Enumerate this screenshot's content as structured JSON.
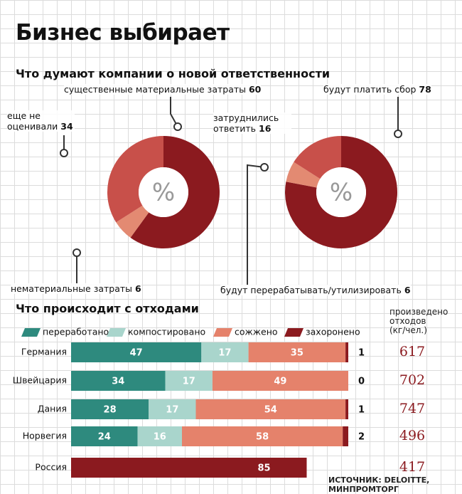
{
  "title": "Бизнес выбирает",
  "source": "ИСТОЧНИК: DELOITTE, МИНПРОМТОРГ",
  "chart_data": [
    {
      "type": "donut",
      "title": "Что думают компании о новой ответственности",
      "center_label": "%",
      "categories": [
        "существенные материальные затраты",
        "нематериальные затраты",
        "еще не оценивали"
      ],
      "values": [
        60,
        6,
        34
      ],
      "colors": [
        "#8b1a1f",
        "#e38a72",
        "#c8504a"
      ]
    },
    {
      "type": "donut",
      "center_label": "%",
      "categories": [
        "будут платить сбор",
        "будут перерабатывать/утилизировать",
        "затруднились ответить"
      ],
      "values": [
        78,
        6,
        16
      ],
      "colors": [
        "#8b1a1f",
        "#e38a72",
        "#c8504a"
      ]
    },
    {
      "type": "bar",
      "orientation": "horizontal",
      "stacked": true,
      "title": "Что происходит с отходами",
      "categories": [
        "Германия",
        "Швейцария",
        "Дания",
        "Норвегия",
        "Россия"
      ],
      "series": [
        {
          "name": "переработано",
          "color": "#2e8a7e",
          "values": [
            47,
            34,
            28,
            24,
            null
          ]
        },
        {
          "name": "компостировано",
          "color": "#a9d5cc",
          "values": [
            17,
            17,
            17,
            16,
            null
          ]
        },
        {
          "name": "сожжено",
          "color": "#e5826b",
          "values": [
            35,
            49,
            54,
            58,
            null
          ]
        },
        {
          "name": "захоронено",
          "color": "#8b1a1f",
          "values": [
            1,
            0,
            1,
            2,
            85
          ]
        }
      ],
      "xlim": [
        0,
        100
      ],
      "side_column": {
        "title_lines": [
          "произведено",
          "отходов",
          "(кг/чел.)"
        ],
        "values": [
          617,
          702,
          747,
          496,
          417
        ]
      }
    }
  ]
}
